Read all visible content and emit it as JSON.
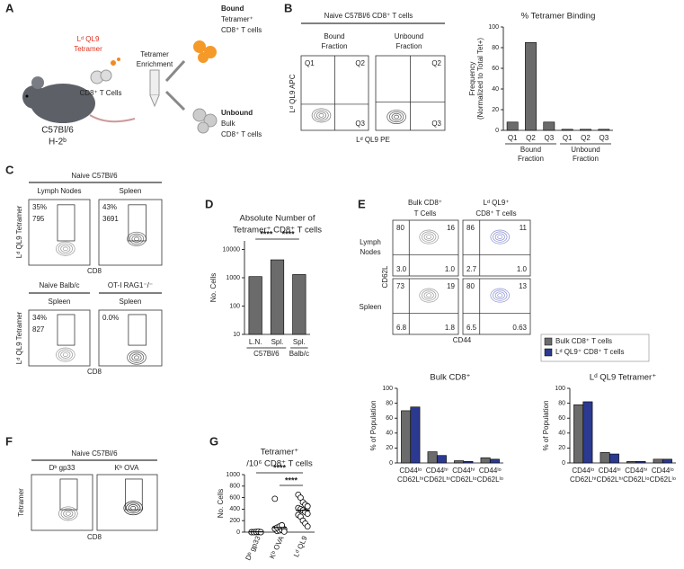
{
  "panel_labels": [
    "A",
    "B",
    "C",
    "D",
    "E",
    "F",
    "G"
  ],
  "a": {
    "tetramer": [
      "Lᵈ QL9",
      "Tetramer"
    ],
    "cells": "CD8⁺ T Cells",
    "enrichment": [
      "Tetramer",
      "Enrichment"
    ],
    "mouse": [
      "C57Bl/6",
      "H-2ᵇ"
    ],
    "bound": [
      "Bound",
      "Tetramer⁺",
      "CD8⁺ T cells"
    ],
    "unbound": [
      "Unbound",
      "Bulk",
      "CD8⁺ T cells"
    ]
  },
  "b": {
    "title": "Naive C57Bl/6 CD8⁺ T cells",
    "columns": [
      [
        "Bound",
        "Fraction"
      ],
      [
        "Unbound",
        "Fraction"
      ]
    ],
    "quadrants": [
      [
        "Q1",
        "Q2",
        "Q3"
      ],
      [
        "Q2",
        "Q3"
      ]
    ],
    "y_axis": "Lᵈ QL9 APC",
    "x_axis": "Lᵈ QL9 PE"
  },
  "c": {
    "title": "Naive C57Bl/6",
    "tissues": [
      "Lymph Nodes",
      "Spleen"
    ],
    "row2": [
      "Naive Balb/c",
      "OT-I RAG1⁻/⁻"
    ],
    "row2_tissues": [
      "Spleen",
      "Spleen"
    ],
    "gates": [
      [
        "35%",
        "795"
      ],
      [
        "43%",
        "3691"
      ],
      [
        "34%",
        "827"
      ],
      [
        "0.0%"
      ]
    ],
    "y_axis": [
      "Lᵈ QL9 Tetramer",
      "Lᵈ QL9 Tetramer"
    ],
    "x_axis": [
      "CD8",
      "CD8"
    ]
  },
  "e": {
    "columns": [
      [
        "Bulk CD8⁺",
        "T Cells"
      ],
      [
        "Lᵈ QL9⁺",
        "CD8⁺ T cells"
      ]
    ],
    "rows": [
      [
        "Lymph",
        "Nodes"
      ],
      [
        "Spleen"
      ]
    ],
    "quadrants": [
      [
        "80",
        "16",
        "3.0",
        "1.0"
      ],
      [
        "86",
        "11",
        "2.7",
        "1.0"
      ],
      [
        "73",
        "19",
        "6.8",
        "1.8"
      ],
      [
        "80",
        "13",
        "6.5",
        "0.63"
      ]
    ],
    "y_axis": "CD62L",
    "x_axis": "CD44"
  },
  "f": {
    "title": "Naive C57Bl/6",
    "tetramers": [
      "Dᵇ gp33",
      "Kᵇ OVA"
    ],
    "y_axis": "Tetramer",
    "x_axis": "CD8"
  },
  "chart_data": [
    {
      "type": "bar",
      "title": "% Tetramer Binding",
      "y_label": [
        "Frequency",
        "(Normalized to Total Tet+)"
      ],
      "categories": [
        "Q1",
        "Q2",
        "Q3",
        "Q1",
        "Q2",
        "Q3"
      ],
      "groups": [
        [
          "Bound",
          "Fraction"
        ],
        null,
        null,
        [
          "Unbound",
          "Fraction"
        ],
        null,
        null
      ],
      "values": [
        8,
        85,
        8,
        1,
        1,
        1
      ],
      "color": "#6b6b6b",
      "ylim": [
        0,
        100
      ],
      "yticks": [
        0,
        20,
        40,
        60,
        80,
        100
      ]
    },
    {
      "type": "bar",
      "title": [
        "Absolute Number of",
        "Tetramer⁺ CD8⁺ T cells"
      ],
      "y_label": "No. Cells",
      "categories": [
        "L.N.",
        "Spl.",
        "Spl."
      ],
      "groups": [
        "C57Bl/6",
        null,
        "Balb/c"
      ],
      "values": [
        1100,
        4300,
        1300
      ],
      "color": "#6b6b6b",
      "log_scale": true,
      "ylim": [
        10,
        20000
      ],
      "yticks": [
        10,
        100,
        1000,
        10000
      ],
      "annotations": [
        "****",
        "****"
      ]
    },
    {
      "type": "grouped_bar",
      "title": "Bulk CD8⁺",
      "y_label": "% of Population",
      "categories": [
        [
          "CD44ˡᵒ",
          "CD62Lʰⁱ"
        ],
        [
          "CD44ʰⁱ",
          "CD62Lʰⁱ"
        ],
        [
          "CD44ʰⁱ",
          "CD62Lˡᵒ"
        ],
        [
          "CD44ˡᵒ",
          "CD62Lˡᵒ"
        ]
      ],
      "series": [
        {
          "name": "Bulk CD8⁺ T cells",
          "color": "#6b6b6b",
          "values": [
            70,
            15,
            3,
            7
          ]
        },
        {
          "name": "Lᵈ QL9⁺ CD8⁺ T cells",
          "color": "#2b3990",
          "values": [
            75,
            10,
            2,
            5
          ]
        }
      ],
      "ylim": [
        0,
        100
      ],
      "yticks": [
        0,
        20,
        40,
        60,
        80,
        100
      ]
    },
    {
      "type": "grouped_bar",
      "title": "Lᵈ QL9 Tetramer⁺",
      "y_label": "% of Population",
      "categories": [
        [
          "CD44ˡᵒ",
          "CD62Lʰⁱ"
        ],
        [
          "CD44ʰⁱ",
          "CD62Lʰⁱ"
        ],
        [
          "CD44ʰⁱ",
          "CD62Lˡᵒ"
        ],
        [
          "CD44ˡᵒ",
          "CD62Lˡᵒ"
        ]
      ],
      "series": [
        {
          "color": "#6b6b6b",
          "values": [
            78,
            14,
            2,
            5
          ]
        },
        {
          "color": "#2b3990",
          "values": [
            82,
            12,
            2,
            5
          ]
        }
      ],
      "ylim": [
        0,
        100
      ],
      "yticks": [
        0,
        20,
        40,
        60,
        80,
        100
      ]
    },
    {
      "type": "dot",
      "title": [
        "Tetramer⁺",
        "/10⁶ CD8⁺ T cells"
      ],
      "y_label": "No. Cells",
      "categories": [
        "Dᵇ gp33",
        "Kᵇ OVA",
        "Lᵈ QL9"
      ],
      "values": [
        5,
        80,
        380
      ],
      "points": [
        [
          0,
          0,
          0,
          0,
          0,
          0,
          0,
          5,
          10,
          0
        ],
        [
          580,
          20,
          30,
          40,
          50,
          60,
          80,
          100,
          120,
          10
        ],
        [
          650,
          600,
          520,
          480,
          450,
          420,
          400,
          380,
          350,
          320,
          300,
          270,
          200,
          150,
          100
        ]
      ],
      "ylim": [
        0,
        1000
      ],
      "yticks": [
        0,
        200,
        400,
        600,
        800,
        1000
      ],
      "annotations": [
        "****",
        "****"
      ]
    }
  ]
}
